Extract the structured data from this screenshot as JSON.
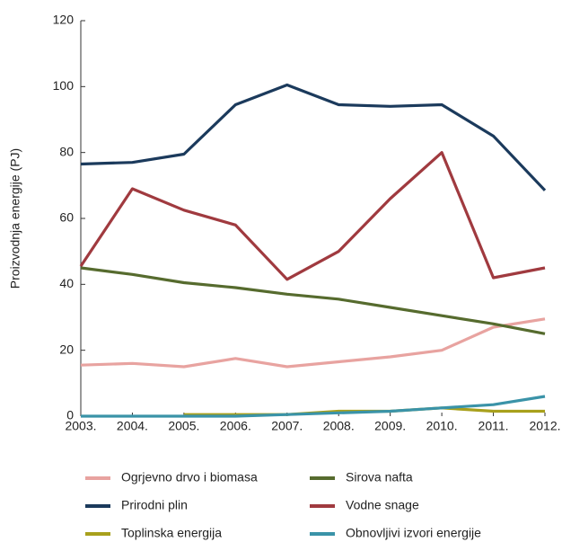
{
  "chart_data": {
    "type": "line",
    "ylabel": "Proizvodnja energije (PJ)",
    "categories": [
      "2003.",
      "2004.",
      "2005.",
      "2006.",
      "2007.",
      "2008.",
      "2009.",
      "2010.",
      "2011.",
      "2012."
    ],
    "ylim": [
      0,
      120
    ],
    "yticks": [
      0,
      20,
      40,
      60,
      80,
      100,
      120
    ],
    "grid": false,
    "series": [
      {
        "name": "Ogrjevno drvo i biomasa",
        "color": "#e8a3a0",
        "values": [
          15.5,
          16,
          15,
          17.5,
          15,
          16.5,
          18,
          20,
          27,
          29.5
        ]
      },
      {
        "name": "Sirova nafta",
        "color": "#566b2e",
        "values": [
          45,
          43,
          40.5,
          39,
          37,
          35.5,
          33,
          30.5,
          28,
          25
        ]
      },
      {
        "name": "Prirodni plin",
        "color": "#1b3a5c",
        "values": [
          76.5,
          77,
          79.5,
          94.5,
          100.5,
          94.5,
          94,
          94.5,
          85,
          68.5
        ]
      },
      {
        "name": "Vodne snage",
        "color": "#a03a3f",
        "values": [
          45.5,
          69,
          62.5,
          58,
          41.5,
          50,
          66,
          80,
          42,
          45
        ]
      },
      {
        "name": "Toplinska energija",
        "color": "#a8a01c",
        "values": [
          null,
          null,
          0.5,
          0.5,
          0.5,
          1.5,
          1.5,
          2.5,
          1.5,
          1.5
        ]
      },
      {
        "name": "Obnovljivi izvori energije",
        "color": "#3a93a8",
        "values": [
          0,
          0,
          0,
          0,
          0.5,
          1,
          1.5,
          2.5,
          3.5,
          6
        ]
      }
    ]
  }
}
